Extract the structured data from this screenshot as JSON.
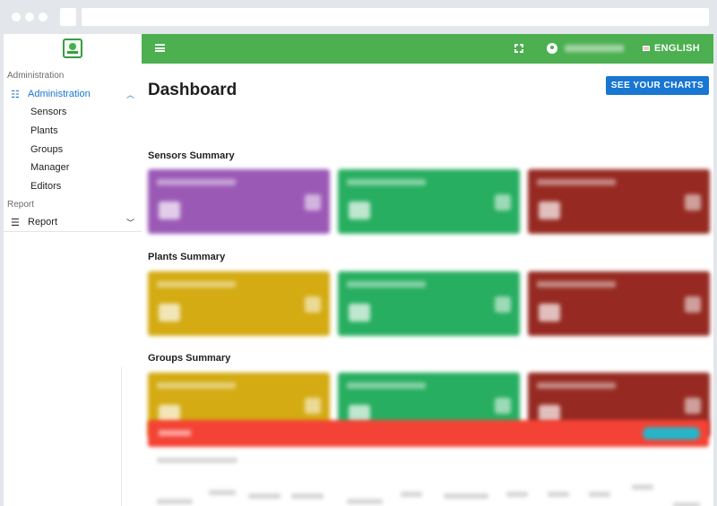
{
  "sidebar": {
    "sections": [
      {
        "title": "Administration",
        "parent": {
          "label": "Administration",
          "icon": "sliders-icon",
          "expanded": true
        },
        "items": [
          "Sensors",
          "Plants",
          "Groups",
          "Manager",
          "Editors"
        ]
      },
      {
        "title": "Report",
        "parent": {
          "label": "Report",
          "icon": "list-icon",
          "expanded": false
        }
      }
    ]
  },
  "header": {
    "language": "ENGLISH",
    "icons": [
      "menu-icon",
      "fullscreen-icon",
      "account-circle-icon",
      "flag-icon"
    ]
  },
  "main": {
    "title": "Dashboard",
    "charts_button": "SEE YOUR CHARTS",
    "summaries": [
      {
        "title": "Sensors Summary",
        "card_colors": [
          "#9b59b6",
          "#27ae60",
          "#962a22"
        ]
      },
      {
        "title": "Plants Summary",
        "card_colors": [
          "#d4ab12",
          "#27ae60",
          "#962a22"
        ]
      },
      {
        "title": "Groups Summary",
        "card_colors": [
          "#d4ab12",
          "#27ae60",
          "#962a22"
        ]
      }
    ]
  },
  "colors": {
    "topbar": "#4caf50",
    "primary": "#1976d2",
    "alert_bar": "#f44336"
  }
}
